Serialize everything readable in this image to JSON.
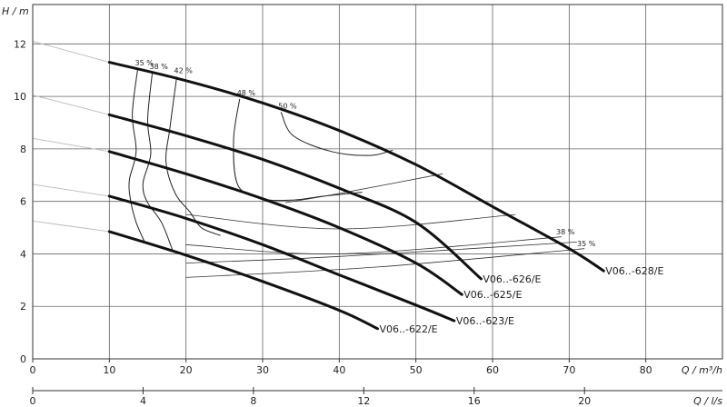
{
  "chart_data": {
    "type": "line",
    "title": "",
    "grid": true,
    "y_axis": {
      "label_symbol": "H",
      "label_unit": "m",
      "range": [
        0,
        13.5
      ],
      "ticks": [
        0,
        2,
        4,
        6,
        8,
        10,
        12
      ]
    },
    "x_axis": {
      "label_symbol": "Q",
      "label_unit": "m³/h",
      "range": [
        0,
        90
      ],
      "ticks": [
        0,
        10,
        20,
        30,
        40,
        50,
        60,
        70,
        80
      ]
    },
    "x_axis_secondary": {
      "label_symbol": "Q",
      "label_unit": "l/s",
      "range": [
        0,
        25
      ],
      "ticks": [
        0,
        4,
        8,
        12,
        16,
        20
      ]
    },
    "series": [
      {
        "name": "V06..-628/E",
        "x": [
          10,
          20,
          30,
          40,
          50,
          60,
          70,
          74.5
        ],
        "y": [
          11.3,
          10.6,
          9.75,
          8.7,
          7.4,
          5.8,
          4.2,
          3.35
        ]
      },
      {
        "name": "V06..-626/E",
        "x": [
          10,
          20,
          30,
          40,
          50,
          58.5
        ],
        "y": [
          9.3,
          8.5,
          7.6,
          6.5,
          5.2,
          3.05
        ]
      },
      {
        "name": "V06..-625/E",
        "x": [
          10,
          20,
          30,
          40,
          50,
          56
        ],
        "y": [
          7.9,
          7.05,
          6.1,
          5.0,
          3.65,
          2.45
        ]
      },
      {
        "name": "V06..-623/E",
        "x": [
          10,
          20,
          30,
          40,
          50,
          55
        ],
        "y": [
          6.2,
          5.35,
          4.35,
          3.2,
          2.05,
          1.45
        ]
      },
      {
        "name": "V06..-622/E",
        "x": [
          10,
          20,
          30,
          40,
          45
        ],
        "y": [
          4.85,
          3.95,
          2.95,
          1.85,
          1.15
        ]
      }
    ],
    "efficiency_curves": [
      {
        "label": "35 %",
        "x": [
          13.7,
          13,
          13.5,
          12.6,
          12.8,
          13.5,
          14.6
        ],
        "y": [
          11.05,
          9.3,
          7.9,
          6.8,
          6.0,
          5.2,
          4.45
        ]
      },
      {
        "label": "38 %",
        "x": [
          15.6,
          15,
          15.4,
          14.4,
          14.9,
          16.8,
          18.3
        ],
        "y": [
          10.9,
          9.1,
          7.8,
          6.7,
          6.0,
          5.2,
          4.1
        ]
      },
      {
        "label": "42 %",
        "x": [
          18.8,
          17.9,
          17.4,
          18.6,
          20.5,
          22,
          24.5
        ],
        "y": [
          10.75,
          8.8,
          7.5,
          6.3,
          5.6,
          5.0,
          4.7
        ]
      },
      {
        "label": "48 %",
        "x": [
          27,
          26.2,
          26.8,
          30,
          34,
          38,
          43
        ],
        "y": [
          9.9,
          8.3,
          6.6,
          6.1,
          6.05,
          6.2,
          6.35
        ]
      },
      {
        "label": "50 %",
        "x": [
          32.4,
          34,
          39,
          44,
          47
        ],
        "y": [
          9.4,
          8.5,
          7.9,
          7.75,
          7.95
        ]
      }
    ],
    "efficiency_right_labels": [
      "38 %",
      "35 %"
    ],
    "gray_lines": [
      {
        "x": [
          0,
          10
        ],
        "y": [
          12.1,
          11.3
        ]
      },
      {
        "x": [
          0,
          10
        ],
        "y": [
          10.05,
          9.3
        ]
      },
      {
        "x": [
          0,
          10
        ],
        "y": [
          8.4,
          7.9
        ]
      },
      {
        "x": [
          0,
          10
        ],
        "y": [
          6.65,
          6.2
        ]
      },
      {
        "x": [
          0,
          10
        ],
        "y": [
          5.25,
          4.85
        ]
      }
    ],
    "thin_lines": [
      {
        "x": [
          33,
          40,
          53.5
        ],
        "y": [
          5.95,
          6.3,
          7.05
        ]
      },
      {
        "x": [
          20,
          40,
          63
        ],
        "y": [
          5.5,
          4.95,
          5.5
        ]
      },
      {
        "x": [
          20,
          40,
          69
        ],
        "y": [
          4.35,
          4.0,
          4.65
        ]
      },
      {
        "x": [
          20,
          40,
          71
        ],
        "y": [
          3.65,
          3.9,
          4.45
        ]
      },
      {
        "x": [
          20,
          45,
          72
        ],
        "y": [
          3.1,
          3.5,
          4.2
        ]
      }
    ]
  }
}
